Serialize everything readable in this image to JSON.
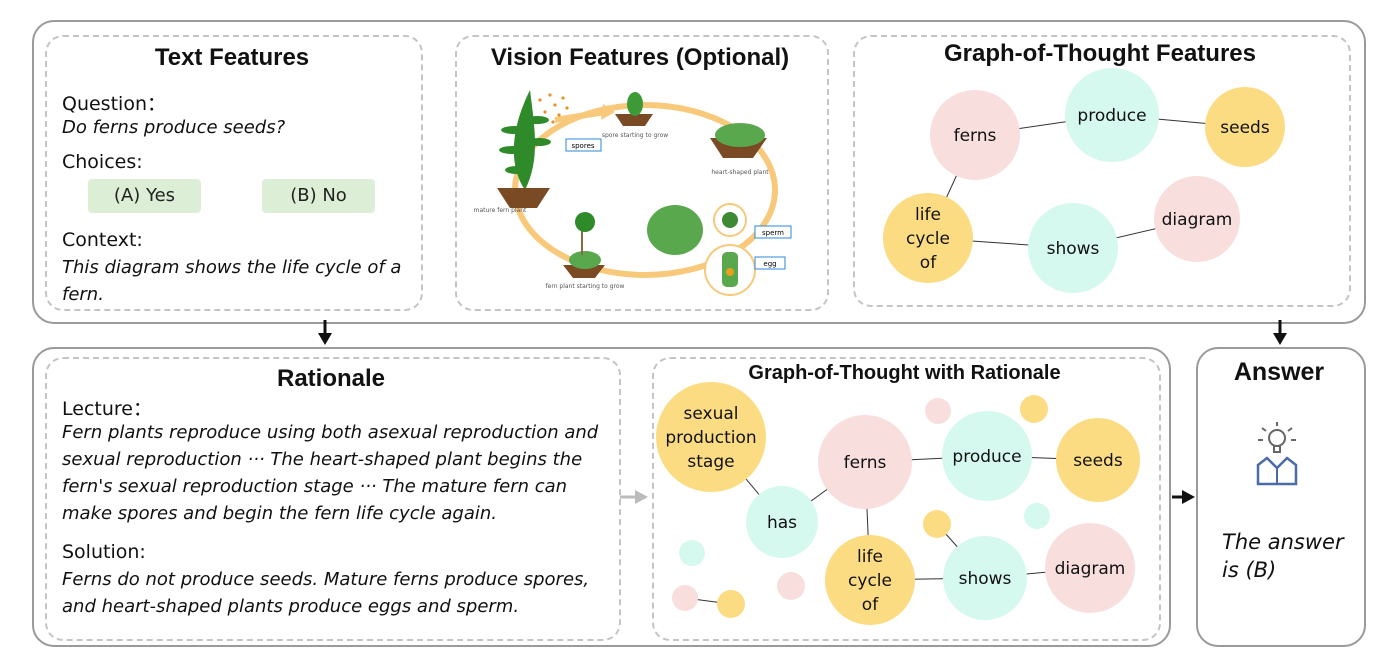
{
  "colors": {
    "pink": "#f9dede",
    "cyan": "#d5f8ef",
    "yellow": "#fcdc83",
    "border": "#9a9a9a",
    "choice_bg": "#dcefd6"
  },
  "text_features": {
    "title": "Text Features",
    "question_label": "Question：",
    "question": "Do ferns produce seeds?",
    "choices_label": "Choices:",
    "choices": [
      "(A) Yes",
      "(B) No"
    ],
    "context_label": "Context:",
    "context": "This diagram shows the life cycle of a fern."
  },
  "vision_features": {
    "title": "Vision Features (Optional)",
    "labels": {
      "spores": "spores",
      "spore_grow": "spore starting to grow",
      "heart": "heart-shaped plant",
      "mature": "mature fern plant",
      "fern_grow": "fern plant starting to grow",
      "sperm": "sperm",
      "egg": "egg"
    }
  },
  "got_features": {
    "title": "Graph-of-Thought Features",
    "nodes": [
      {
        "id": "ferns",
        "label": "ferns",
        "color": "pink"
      },
      {
        "id": "produce",
        "label": "produce",
        "color": "cyan"
      },
      {
        "id": "seeds",
        "label": "seeds",
        "color": "yellow"
      },
      {
        "id": "life",
        "label": "life cycle of",
        "color": "yellow"
      },
      {
        "id": "shows",
        "label": "shows",
        "color": "cyan"
      },
      {
        "id": "diagram",
        "label": "diagram",
        "color": "pink"
      }
    ],
    "edges": [
      [
        "ferns",
        "produce"
      ],
      [
        "produce",
        "seeds"
      ],
      [
        "ferns",
        "life"
      ],
      [
        "life",
        "shows"
      ],
      [
        "shows",
        "diagram"
      ]
    ]
  },
  "rationale": {
    "title": "Rationale",
    "lecture_label": "Lecture：",
    "lecture": "Fern plants reproduce using both asexual reproduction and sexual reproduction ··· The heart-shaped plant begins the fern's sexual reproduction stage ··· The mature fern can make spores and begin the fern life cycle again.",
    "solution_label": "Solution:",
    "solution": "Ferns do not produce seeds. Mature ferns produce spores, and heart-shaped plants produce eggs and sperm."
  },
  "got_rationale": {
    "title": "Graph-of-Thought with Rationale",
    "nodes": [
      {
        "id": "sps",
        "label": "sexual production stage",
        "color": "yellow"
      },
      {
        "id": "has",
        "label": "has",
        "color": "cyan"
      },
      {
        "id": "ferns",
        "label": "ferns",
        "color": "pink"
      },
      {
        "id": "produce",
        "label": "produce",
        "color": "cyan"
      },
      {
        "id": "seeds",
        "label": "seeds",
        "color": "yellow"
      },
      {
        "id": "life",
        "label": "life cycle of",
        "color": "yellow"
      },
      {
        "id": "shows",
        "label": "shows",
        "color": "cyan"
      },
      {
        "id": "diagram",
        "label": "diagram",
        "color": "pink"
      },
      {
        "id": "s1",
        "label": "",
        "color": "pink"
      },
      {
        "id": "s2",
        "label": "",
        "color": "yellow"
      },
      {
        "id": "s3",
        "label": "",
        "color": "yellow"
      },
      {
        "id": "s4",
        "label": "",
        "color": "cyan"
      },
      {
        "id": "s5",
        "label": "",
        "color": "cyan"
      },
      {
        "id": "s6",
        "label": "",
        "color": "pink"
      },
      {
        "id": "s7",
        "label": "",
        "color": "yellow"
      },
      {
        "id": "s8",
        "label": "",
        "color": "pink"
      }
    ],
    "edges": [
      [
        "sps",
        "has"
      ],
      [
        "has",
        "ferns"
      ],
      [
        "ferns",
        "produce"
      ],
      [
        "produce",
        "seeds"
      ],
      [
        "ferns",
        "life"
      ],
      [
        "life",
        "shows"
      ],
      [
        "shows",
        "diagram"
      ],
      [
        "shows",
        "s3"
      ],
      [
        "s6",
        "s7"
      ]
    ]
  },
  "answer": {
    "title": "Answer",
    "icon": "lightbulb-person-icon",
    "text": "The answer is (B)"
  }
}
